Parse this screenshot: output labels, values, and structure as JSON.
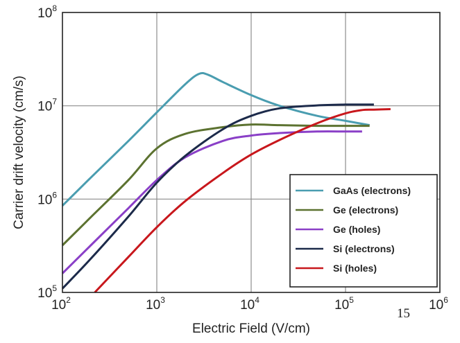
{
  "chart_data": {
    "type": "line",
    "xlabel": "Electric Field (V/cm)",
    "ylabel": "Carrier drift velocity (cm/s)",
    "x_scale": "log",
    "y_scale": "log",
    "xlim": [
      100,
      1000000
    ],
    "ylim": [
      100000,
      100000000
    ],
    "x_ticks": [
      {
        "base": "10",
        "exp": "2"
      },
      {
        "base": "10",
        "exp": "3"
      },
      {
        "base": "10",
        "exp": "4"
      },
      {
        "base": "10",
        "exp": "5"
      },
      {
        "base": "10",
        "exp": "6"
      }
    ],
    "y_ticks": [
      {
        "base": "10",
        "exp": "5"
      },
      {
        "base": "10",
        "exp": "6"
      },
      {
        "base": "10",
        "exp": "7"
      },
      {
        "base": "10",
        "exp": "8"
      }
    ],
    "grid": true,
    "legend_position": "bottom-right",
    "series": [
      {
        "name": "GaAs (electrons)",
        "color": "#4a9db0",
        "x": [
          100,
          200,
          500,
          1000,
          2000,
          2800,
          3500,
          5000,
          10000,
          20000,
          50000,
          100000,
          180000
        ],
        "y": [
          850000,
          1700000,
          4200000,
          8500000,
          17000000,
          22000000,
          21500000,
          18000000,
          13000000,
          10000000,
          7800000,
          6900000,
          6200000
        ]
      },
      {
        "name": "Ge (electrons)",
        "color": "#5c7230",
        "x": [
          100,
          200,
          500,
          1000,
          2000,
          5000,
          10000,
          20000,
          50000,
          100000,
          180000
        ],
        "y": [
          320000,
          640000,
          1600000,
          3500000,
          5000000,
          5900000,
          6300000,
          6200000,
          6100000,
          6100000,
          6100000
        ]
      },
      {
        "name": "Ge (holes)",
        "color": "#8a3fc7",
        "x": [
          100,
          200,
          500,
          1000,
          2000,
          5000,
          10000,
          20000,
          50000,
          100000,
          150000
        ],
        "y": [
          160000,
          320000,
          800000,
          1600000,
          2800000,
          4200000,
          4800000,
          5100000,
          5300000,
          5300000,
          5300000
        ]
      },
      {
        "name": "Si (electrons)",
        "color": "#1c2a4a",
        "x": [
          100,
          200,
          500,
          1000,
          2000,
          5000,
          10000,
          20000,
          50000,
          100000,
          150000,
          200000
        ],
        "y": [
          110000,
          230000,
          650000,
          1500000,
          2900000,
          5600000,
          7800000,
          9400000,
          10100000,
          10300000,
          10300000,
          10300000
        ]
      },
      {
        "name": "Si (holes)",
        "color": "#c8171c",
        "x": [
          220,
          500,
          1000,
          2000,
          5000,
          10000,
          20000,
          50000,
          100000,
          150000,
          200000,
          300000
        ],
        "y": [
          100000,
          240000,
          500000,
          950000,
          1900000,
          3000000,
          4300000,
          6500000,
          8300000,
          9000000,
          9100000,
          9200000
        ]
      }
    ]
  },
  "page_number": "15"
}
